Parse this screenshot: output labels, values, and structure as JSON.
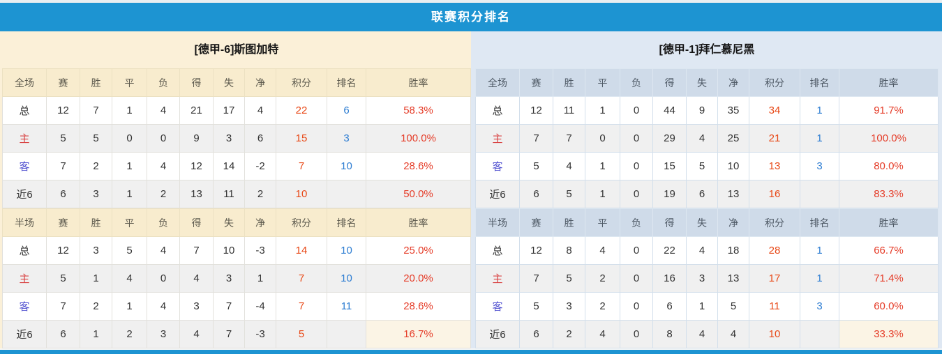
{
  "title": "联赛积分排名",
  "columns": [
    "赛",
    "胜",
    "平",
    "负",
    "得",
    "失",
    "净",
    "积分",
    "排名",
    "胜率"
  ],
  "colors": {
    "title_bar": "#1d94d2",
    "page_strip": "#e8eef1",
    "left_theme": "#fbf0d8",
    "left_head": "#f8ecce",
    "right_theme": "#dfe8f3",
    "right_head": "#cfdbe9",
    "alt_row": "#f0f0f0",
    "cream": "#fbf4e5",
    "points": "#e84715",
    "rank": "#2d7dd2",
    "rate": "#e53c28",
    "home": "#d94444",
    "away": "#5353d1"
  },
  "teams": [
    {
      "name": "[德甲-6]斯图加特",
      "tables": [
        {
          "label": "全场",
          "rows": [
            {
              "label": "总",
              "type": "total",
              "cells": [
                "12",
                "7",
                "1",
                "4",
                "21",
                "17",
                "4"
              ],
              "points": "22",
              "rank": "6",
              "rate": "58.3%"
            },
            {
              "label": "主",
              "type": "home",
              "cells": [
                "5",
                "5",
                "0",
                "0",
                "9",
                "3",
                "6"
              ],
              "points": "15",
              "rank": "3",
              "rate": "100.0%"
            },
            {
              "label": "客",
              "type": "away",
              "cells": [
                "7",
                "2",
                "1",
                "4",
                "12",
                "14",
                "-2"
              ],
              "points": "7",
              "rank": "10",
              "rate": "28.6%"
            },
            {
              "label": "近6",
              "type": "recent",
              "cells": [
                "6",
                "3",
                "1",
                "2",
                "13",
                "11",
                "2"
              ],
              "points": "10",
              "rank": "",
              "rate": "50.0%"
            }
          ]
        },
        {
          "label": "半场",
          "rows": [
            {
              "label": "总",
              "type": "total",
              "cells": [
                "12",
                "3",
                "5",
                "4",
                "7",
                "10",
                "-3"
              ],
              "points": "14",
              "rank": "10",
              "rate": "25.0%"
            },
            {
              "label": "主",
              "type": "home",
              "cells": [
                "5",
                "1",
                "4",
                "0",
                "4",
                "3",
                "1"
              ],
              "points": "7",
              "rank": "10",
              "rate": "20.0%"
            },
            {
              "label": "客",
              "type": "away",
              "cells": [
                "7",
                "2",
                "1",
                "4",
                "3",
                "7",
                "-4"
              ],
              "points": "7",
              "rank": "11",
              "rate": "28.6%"
            },
            {
              "label": "近6",
              "type": "recent",
              "cells": [
                "6",
                "1",
                "2",
                "3",
                "4",
                "7",
                "-3"
              ],
              "points": "5",
              "rank": "",
              "rate": "16.7%"
            }
          ]
        }
      ]
    },
    {
      "name": "[德甲-1]拜仁慕尼黑",
      "tables": [
        {
          "label": "全场",
          "rows": [
            {
              "label": "总",
              "type": "total",
              "cells": [
                "12",
                "11",
                "1",
                "0",
                "44",
                "9",
                "35"
              ],
              "points": "34",
              "rank": "1",
              "rate": "91.7%"
            },
            {
              "label": "主",
              "type": "home",
              "cells": [
                "7",
                "7",
                "0",
                "0",
                "29",
                "4",
                "25"
              ],
              "points": "21",
              "rank": "1",
              "rate": "100.0%"
            },
            {
              "label": "客",
              "type": "away",
              "cells": [
                "5",
                "4",
                "1",
                "0",
                "15",
                "5",
                "10"
              ],
              "points": "13",
              "rank": "3",
              "rate": "80.0%"
            },
            {
              "label": "近6",
              "type": "recent",
              "cells": [
                "6",
                "5",
                "1",
                "0",
                "19",
                "6",
                "13"
              ],
              "points": "16",
              "rank": "",
              "rate": "83.3%"
            }
          ]
        },
        {
          "label": "半场",
          "rows": [
            {
              "label": "总",
              "type": "total",
              "cells": [
                "12",
                "8",
                "4",
                "0",
                "22",
                "4",
                "18"
              ],
              "points": "28",
              "rank": "1",
              "rate": "66.7%"
            },
            {
              "label": "主",
              "type": "home",
              "cells": [
                "7",
                "5",
                "2",
                "0",
                "16",
                "3",
                "13"
              ],
              "points": "17",
              "rank": "1",
              "rate": "71.4%"
            },
            {
              "label": "客",
              "type": "away",
              "cells": [
                "5",
                "3",
                "2",
                "0",
                "6",
                "1",
                "5"
              ],
              "points": "11",
              "rank": "3",
              "rate": "60.0%"
            },
            {
              "label": "近6",
              "type": "recent",
              "cells": [
                "6",
                "2",
                "4",
                "0",
                "8",
                "4",
                "4"
              ],
              "points": "10",
              "rank": "",
              "rate": "33.3%"
            }
          ]
        }
      ]
    }
  ]
}
